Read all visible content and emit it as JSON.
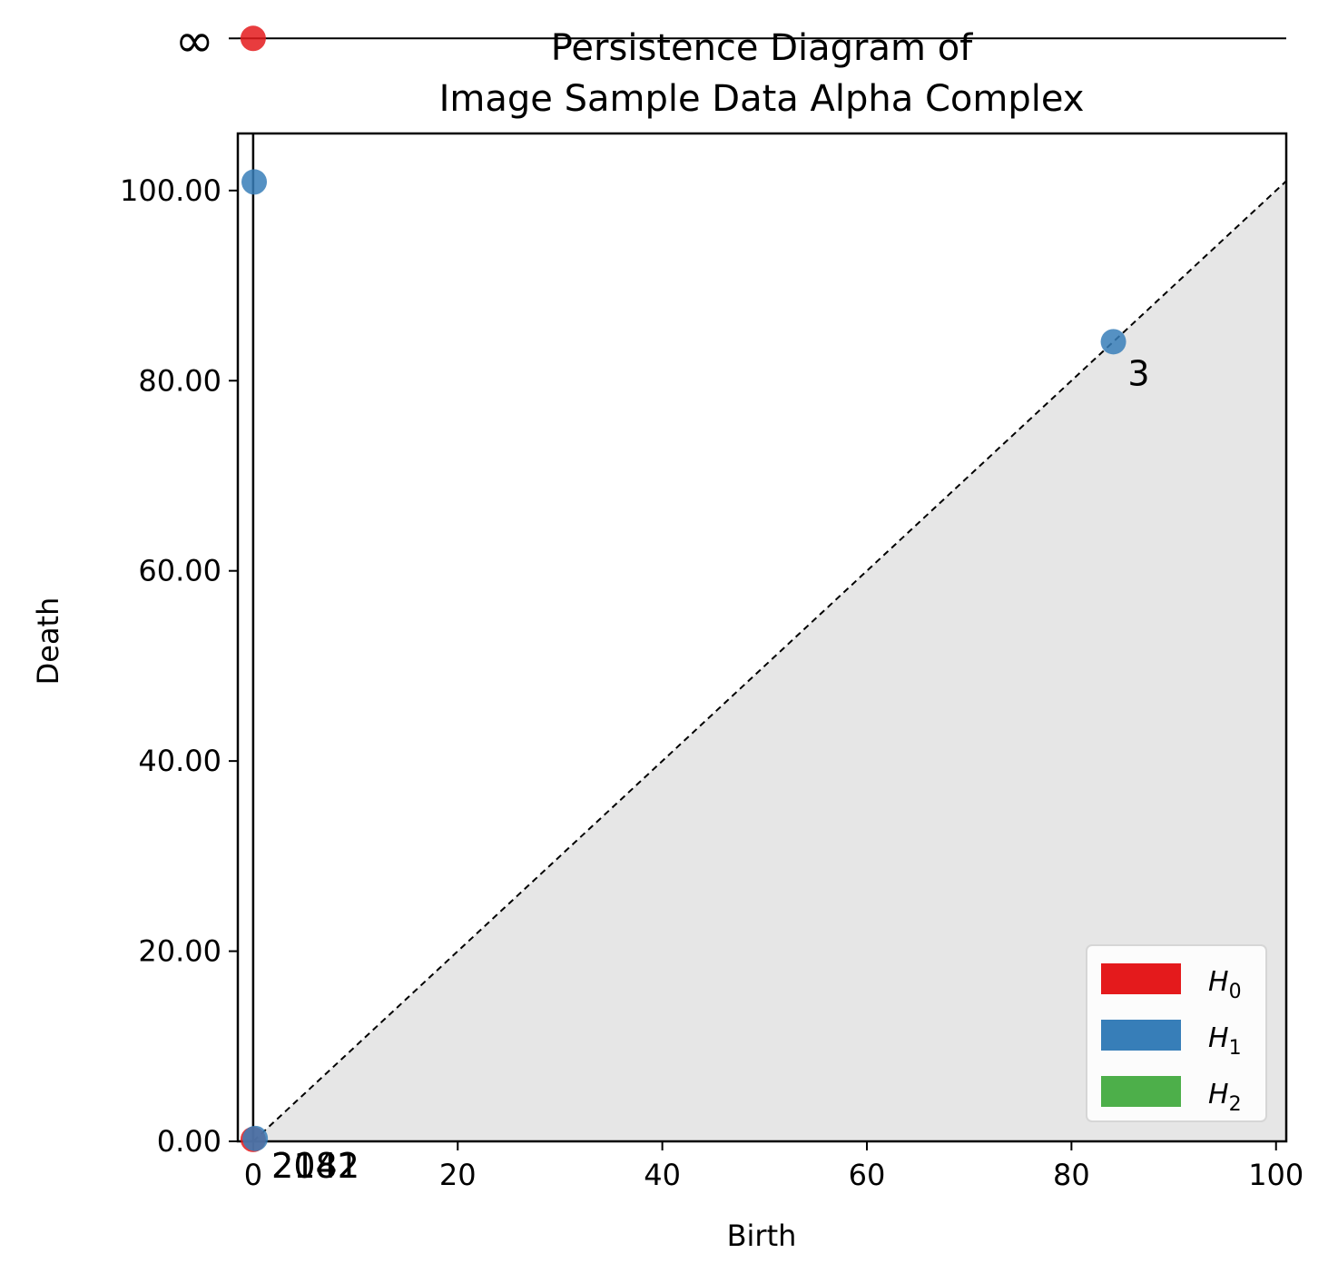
{
  "chart_data": {
    "type": "scatter",
    "title_line1": "Persistence Diagram of",
    "title_line2": "Image Sample Data Alpha Complex",
    "xlabel": "Birth",
    "ylabel": "Death",
    "xlim": [
      -1.5,
      101
    ],
    "ylim": [
      0,
      106
    ],
    "x_ticks": [
      0,
      20,
      40,
      60,
      80,
      100
    ],
    "x_tick_labels": [
      "0",
      "20",
      "40",
      "60",
      "80",
      "100"
    ],
    "y_ticks": [
      0,
      20,
      40,
      60,
      80,
      100
    ],
    "y_tick_labels": [
      "0.00",
      "20.00",
      "40.00",
      "60.00",
      "80.00",
      "100.00"
    ],
    "infinity_label": "∞",
    "infinity_line_y": 116,
    "diagonal": true,
    "shade_below_diagonal": true,
    "colors": {
      "H0": "#e41a1c",
      "H1": "#377eb8",
      "H2": "#4daf4a",
      "diagonal_fill": "#e6e6e6",
      "axis": "#000000"
    },
    "series": [
      {
        "name": "H0",
        "color": "#e41a1c",
        "points": [
          {
            "birth": 0,
            "death": 116,
            "infinite": true
          },
          {
            "birth": 0,
            "death": 0.2
          }
        ]
      },
      {
        "name": "H1",
        "color": "#377eb8",
        "points": [
          {
            "birth": 0.1,
            "death": 100.9
          },
          {
            "birth": 84.1,
            "death": 84.1
          },
          {
            "birth": 0.2,
            "death": 0.3
          }
        ]
      },
      {
        "name": "H2",
        "color": "#4daf4a",
        "points": []
      }
    ],
    "annotations": [
      {
        "text": "3",
        "x": 85.5,
        "y": 79.5
      },
      {
        "text": "2041",
        "x": 1.8,
        "y": -3.8
      },
      {
        "text": "2182",
        "x": 1.8,
        "y": -3.8
      }
    ],
    "legend": {
      "placement": "lower-right",
      "entries": [
        {
          "main": "H",
          "sub": "0",
          "color": "#e41a1c"
        },
        {
          "main": "H",
          "sub": "1",
          "color": "#377eb8"
        },
        {
          "main": "H",
          "sub": "2",
          "color": "#4daf4a"
        }
      ]
    }
  }
}
